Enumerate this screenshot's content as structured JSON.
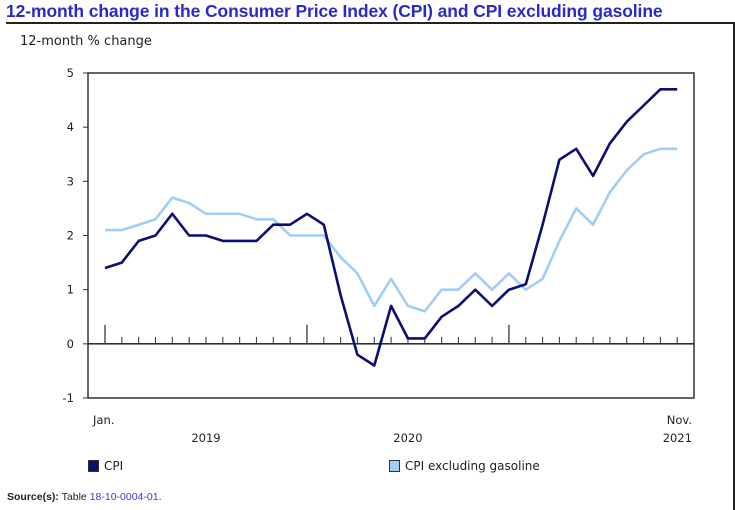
{
  "chart_data": {
    "type": "line",
    "title": "12-month change in the Consumer Price Index (CPI) and CPI excluding gasoline",
    "ylabel": "12-month % change",
    "xlabel": "",
    "ylim": [
      -1,
      5
    ],
    "yticks": [
      5,
      4,
      3,
      2,
      1,
      0,
      -1
    ],
    "x_start": "Jan. 2019",
    "x_end": "Nov. 2021",
    "x_tick_labels": [
      {
        "label": "Jan.",
        "month_index": 0,
        "row": 1
      },
      {
        "label": "2019",
        "month_index": 6,
        "row": 2
      },
      {
        "label": "2020",
        "month_index": 18,
        "row": 2
      },
      {
        "label": "Nov.",
        "month_index": 34,
        "row": 1
      },
      {
        "label": "2021",
        "month_index": 34,
        "row": 2
      }
    ],
    "major_ticks_month_index": [
      0,
      12,
      24
    ],
    "x": [
      "2019-01",
      "2019-02",
      "2019-03",
      "2019-04",
      "2019-05",
      "2019-06",
      "2019-07",
      "2019-08",
      "2019-09",
      "2019-10",
      "2019-11",
      "2019-12",
      "2020-01",
      "2020-02",
      "2020-03",
      "2020-04",
      "2020-05",
      "2020-06",
      "2020-07",
      "2020-08",
      "2020-09",
      "2020-10",
      "2020-11",
      "2020-12",
      "2021-01",
      "2021-02",
      "2021-03",
      "2021-04",
      "2021-05",
      "2021-06",
      "2021-07",
      "2021-08",
      "2021-09",
      "2021-10",
      "2021-11"
    ],
    "series": [
      {
        "name": "CPI",
        "color": "#0d0d73",
        "values": [
          1.4,
          1.5,
          1.9,
          2.0,
          2.4,
          2.0,
          2.0,
          1.9,
          1.9,
          1.9,
          2.2,
          2.2,
          2.4,
          2.2,
          0.9,
          -0.2,
          -0.4,
          0.7,
          0.1,
          0.1,
          0.5,
          0.7,
          1.0,
          0.7,
          1.0,
          1.1,
          2.2,
          3.4,
          3.6,
          3.1,
          3.7,
          4.1,
          4.4,
          4.7,
          4.7
        ]
      },
      {
        "name": "CPI excluding gasoline",
        "color": "#a3cdf5",
        "values": [
          2.1,
          2.1,
          2.2,
          2.3,
          2.7,
          2.6,
          2.4,
          2.4,
          2.4,
          2.3,
          2.3,
          2.0,
          2.0,
          2.0,
          1.6,
          1.3,
          0.7,
          1.2,
          0.7,
          0.6,
          1.0,
          1.0,
          1.3,
          1.0,
          1.3,
          1.0,
          1.2,
          1.9,
          2.5,
          2.2,
          2.8,
          3.2,
          3.5,
          3.6,
          3.6
        ]
      }
    ],
    "legend_position": "bottom",
    "grid": false
  },
  "legend": {
    "items": [
      {
        "label": "CPI",
        "color": "#0d0d73"
      },
      {
        "label": "CPI excluding gasoline",
        "color": "#a3cdf5"
      }
    ]
  },
  "source": {
    "prefix": "Source(s):",
    "text": " Table ",
    "link": "18-10-0004-01",
    "suffix": "."
  }
}
